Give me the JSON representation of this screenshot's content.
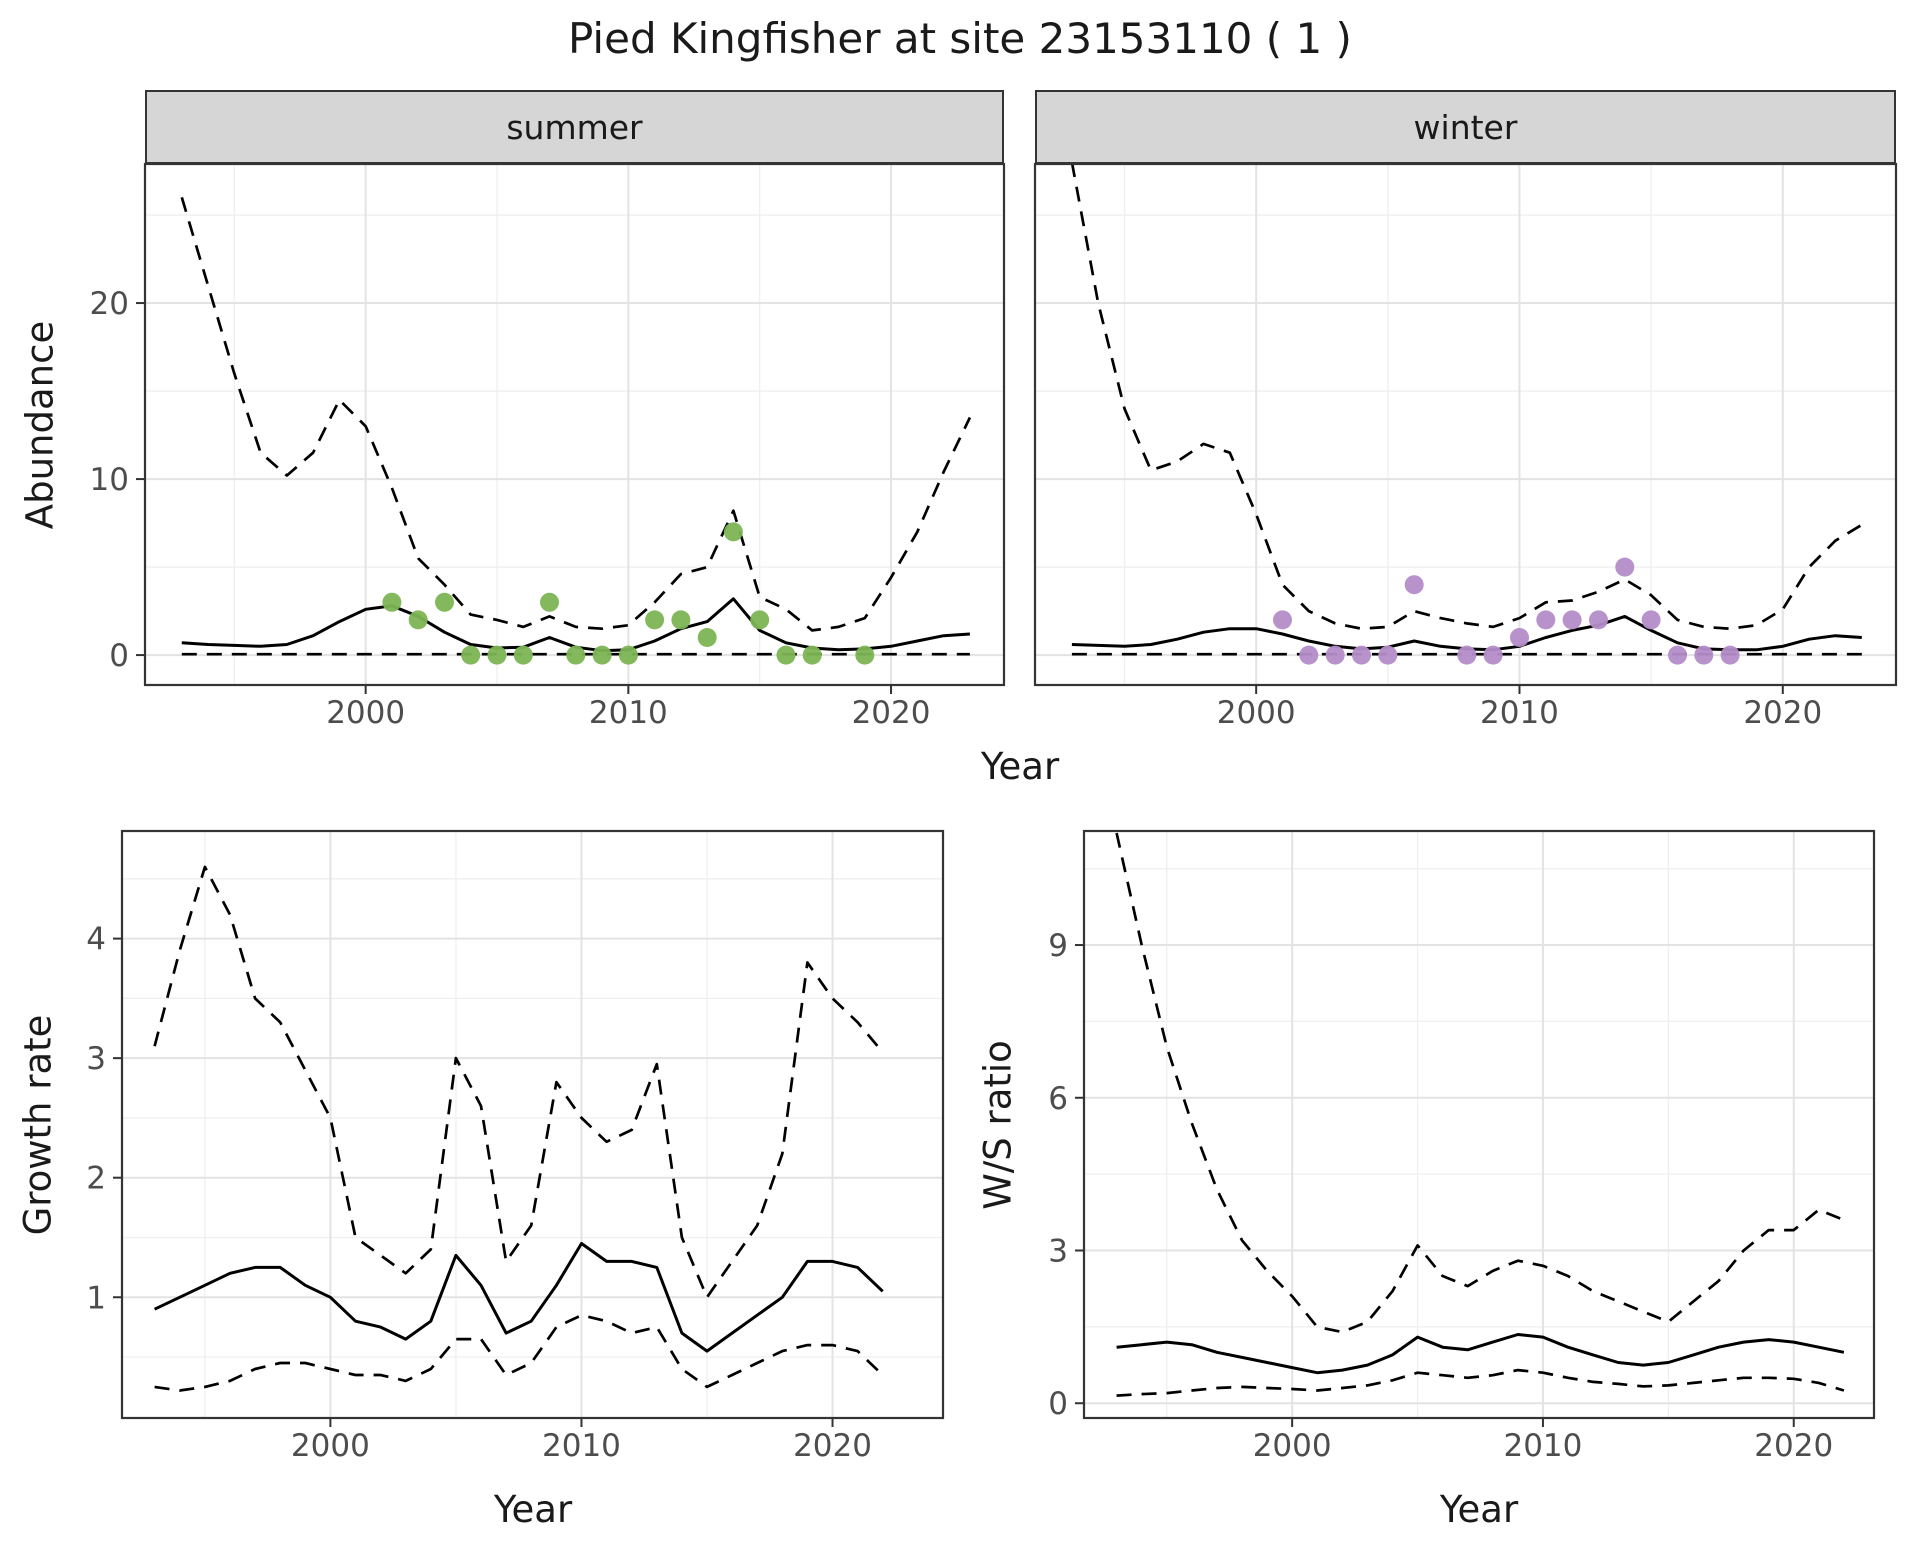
{
  "title": "Pied Kingfisher at site 23153110 ( 1 )",
  "colors": {
    "summer_points": "#7cb454",
    "winter_points": "#b48cc8",
    "line": "#000000",
    "strip_bg": "#d6d6d6",
    "panel_bg": "#ffffff",
    "grid_major": "#e3e3e3",
    "grid_minor": "#efefef",
    "tick_mark": "#333333",
    "panel_border": "#343434",
    "tick_text": "#4d4d4d"
  },
  "chart_data": [
    {
      "id": "abundance",
      "type": "line",
      "xlabel": "Year",
      "ylabel": "Abundance",
      "xlim": [
        1991.6,
        2024.3
      ],
      "ylim": [
        -1.7,
        27.9
      ],
      "xticks": [
        2000,
        2010,
        2020
      ],
      "yticks": [
        0,
        10,
        20
      ],
      "x": [
        1993,
        1994,
        1995,
        1996,
        1997,
        1998,
        1999,
        2000,
        2001,
        2002,
        2003,
        2004,
        2005,
        2006,
        2007,
        2008,
        2009,
        2010,
        2011,
        2012,
        2013,
        2014,
        2015,
        2016,
        2017,
        2018,
        2019,
        2020,
        2021,
        2022,
        2023
      ],
      "facets": [
        {
          "label": "summer",
          "series": [
            {
              "name": "upper_95ci",
              "style": "dashed",
              "values": [
                26,
                21,
                16,
                11.5,
                10.2,
                11.5,
                14.5,
                13,
                9.5,
                5.5,
                4,
                2.3,
                2,
                1.6,
                2.2,
                1.6,
                1.5,
                1.7,
                3,
                4.6,
                5,
                8.2,
                3.3,
                2.6,
                1.4,
                1.6,
                2.1,
                4.4,
                7,
                10.4,
                13.5
              ]
            },
            {
              "name": "mean_abundance",
              "style": "solid",
              "values": [
                0.7,
                0.6,
                0.55,
                0.5,
                0.6,
                1.1,
                1.9,
                2.6,
                2.8,
                2.2,
                1.3,
                0.6,
                0.4,
                0.45,
                1.0,
                0.45,
                0.25,
                0.3,
                0.8,
                1.5,
                1.9,
                3.2,
                1.4,
                0.7,
                0.4,
                0.3,
                0.35,
                0.5,
                0.8,
                1.1,
                1.2
              ]
            },
            {
              "name": "lower_95ci",
              "style": "dashed",
              "values": [
                0.05,
                0.05,
                0.05,
                0.05,
                0.05,
                0.05,
                0.05,
                0.05,
                0.05,
                0.05,
                0.05,
                0.05,
                0.05,
                0.05,
                0.05,
                0.05,
                0.05,
                0.05,
                0.05,
                0.05,
                0.05,
                0.05,
                0.05,
                0.05,
                0.05,
                0.05,
                0.05,
                0.05,
                0.05,
                0.05,
                0.05
              ]
            }
          ],
          "points": {
            "name": "observed_counts",
            "color_key": "summer_points",
            "x": [
              2001,
              2002,
              2003,
              2004,
              2005,
              2006,
              2007,
              2008,
              2009,
              2010,
              2011,
              2012,
              2013,
              2014,
              2015,
              2016,
              2017,
              2019
            ],
            "y": [
              3,
              2,
              3,
              0,
              0,
              0,
              3,
              0,
              0,
              0,
              2,
              2,
              1,
              7,
              2,
              0,
              0,
              0
            ]
          }
        },
        {
          "label": "winter",
          "series": [
            {
              "name": "upper_95ci",
              "style": "dashed",
              "values": [
                28,
                20,
                14,
                10.5,
                11,
                12,
                11.5,
                8,
                4,
                2.5,
                1.8,
                1.5,
                1.6,
                2.5,
                2.1,
                1.8,
                1.6,
                2.1,
                3,
                3.1,
                3.6,
                4.3,
                3.4,
                2,
                1.6,
                1.5,
                1.7,
                2.6,
                5,
                6.5,
                7.4
              ]
            },
            {
              "name": "mean_abundance",
              "style": "solid",
              "values": [
                0.6,
                0.55,
                0.5,
                0.6,
                0.9,
                1.3,
                1.5,
                1.5,
                1.2,
                0.8,
                0.5,
                0.35,
                0.45,
                0.8,
                0.5,
                0.35,
                0.3,
                0.5,
                1.0,
                1.4,
                1.7,
                2.2,
                1.4,
                0.7,
                0.35,
                0.3,
                0.3,
                0.5,
                0.9,
                1.1,
                1.0
              ]
            },
            {
              "name": "lower_95ci",
              "style": "dashed",
              "values": [
                0.05,
                0.05,
                0.05,
                0.05,
                0.05,
                0.05,
                0.05,
                0.05,
                0.05,
                0.05,
                0.05,
                0.05,
                0.05,
                0.05,
                0.05,
                0.05,
                0.05,
                0.05,
                0.05,
                0.05,
                0.05,
                0.05,
                0.05,
                0.05,
                0.05,
                0.05,
                0.05,
                0.05,
                0.05,
                0.05,
                0.05
              ]
            }
          ],
          "points": {
            "name": "observed_counts",
            "color_key": "winter_points",
            "x": [
              2001,
              2002,
              2003,
              2004,
              2005,
              2006,
              2008,
              2009,
              2010,
              2011,
              2012,
              2013,
              2014,
              2015,
              2016,
              2017,
              2018
            ],
            "y": [
              2,
              0,
              0,
              0,
              0,
              4,
              0,
              0,
              1,
              2,
              2,
              2,
              5,
              2,
              0,
              0,
              0
            ]
          }
        }
      ]
    },
    {
      "id": "growth_rate",
      "type": "line",
      "xlabel": "Year",
      "ylabel": "Growth rate",
      "xlim": [
        1991.7,
        2024.4
      ],
      "ylim": [
        -0.01,
        4.9
      ],
      "xticks": [
        2000,
        2010,
        2020
      ],
      "yticks": [
        1,
        2,
        3,
        4
      ],
      "x": [
        1993,
        1994,
        1995,
        1996,
        1997,
        1998,
        1999,
        2000,
        2001,
        2002,
        2003,
        2004,
        2005,
        2006,
        2007,
        2008,
        2009,
        2010,
        2011,
        2012,
        2013,
        2014,
        2015,
        2016,
        2017,
        2018,
        2019,
        2020,
        2021,
        2022
      ],
      "series": [
        {
          "name": "upper_95ci",
          "style": "dashed",
          "values": [
            3.1,
            3.9,
            4.6,
            4.2,
            3.5,
            3.3,
            2.9,
            2.5,
            1.5,
            1.35,
            1.2,
            1.4,
            3.0,
            2.6,
            1.3,
            1.6,
            2.8,
            2.5,
            2.3,
            2.4,
            2.95,
            1.5,
            1.0,
            1.3,
            1.6,
            2.2,
            3.8,
            3.5,
            3.3,
            3.05
          ]
        },
        {
          "name": "mean_growth_rate",
          "style": "solid",
          "values": [
            0.9,
            1.0,
            1.1,
            1.2,
            1.25,
            1.25,
            1.1,
            1.0,
            0.8,
            0.75,
            0.65,
            0.8,
            1.35,
            1.1,
            0.7,
            0.8,
            1.1,
            1.45,
            1.3,
            1.3,
            1.25,
            0.7,
            0.55,
            0.7,
            0.85,
            1.0,
            1.3,
            1.3,
            1.25,
            1.05
          ]
        },
        {
          "name": "lower_95ci",
          "style": "dashed",
          "values": [
            0.25,
            0.22,
            0.25,
            0.3,
            0.4,
            0.45,
            0.45,
            0.4,
            0.35,
            0.35,
            0.3,
            0.4,
            0.65,
            0.65,
            0.35,
            0.45,
            0.75,
            0.85,
            0.8,
            0.7,
            0.75,
            0.4,
            0.25,
            0.35,
            0.45,
            0.55,
            0.6,
            0.6,
            0.55,
            0.35
          ]
        }
      ]
    },
    {
      "id": "ws_ratio",
      "type": "line",
      "xlabel": "Year",
      "ylabel": "W/S ratio",
      "xlim": [
        1991.7,
        2023.2
      ],
      "ylim": [
        -0.29,
        11.24
      ],
      "xticks": [
        2000,
        2010,
        2020
      ],
      "yticks": [
        0,
        3,
        6,
        9
      ],
      "x": [
        1993,
        1994,
        1995,
        1996,
        1997,
        1998,
        1999,
        2000,
        2001,
        2002,
        2003,
        2004,
        2005,
        2006,
        2007,
        2008,
        2009,
        2010,
        2011,
        2012,
        2013,
        2014,
        2015,
        2016,
        2017,
        2018,
        2019,
        2020,
        2021,
        2022
      ],
      "series": [
        {
          "name": "upper_95ci",
          "style": "dashed",
          "values": [
            11.2,
            9.0,
            7.0,
            5.5,
            4.2,
            3.2,
            2.6,
            2.1,
            1.5,
            1.4,
            1.6,
            2.2,
            3.1,
            2.5,
            2.3,
            2.6,
            2.8,
            2.7,
            2.5,
            2.2,
            2.0,
            1.8,
            1.6,
            2.0,
            2.4,
            3.0,
            3.4,
            3.4,
            3.8,
            3.6
          ]
        },
        {
          "name": "mean_ws_ratio",
          "style": "solid",
          "values": [
            1.1,
            1.15,
            1.2,
            1.15,
            1.0,
            0.9,
            0.8,
            0.7,
            0.6,
            0.65,
            0.75,
            0.95,
            1.3,
            1.1,
            1.05,
            1.2,
            1.35,
            1.3,
            1.1,
            0.95,
            0.8,
            0.75,
            0.8,
            0.95,
            1.1,
            1.2,
            1.25,
            1.2,
            1.1,
            1.0
          ]
        },
        {
          "name": "lower_95ci",
          "style": "dashed",
          "values": [
            0.15,
            0.18,
            0.2,
            0.25,
            0.3,
            0.32,
            0.3,
            0.28,
            0.25,
            0.3,
            0.35,
            0.45,
            0.6,
            0.55,
            0.5,
            0.55,
            0.65,
            0.6,
            0.5,
            0.42,
            0.38,
            0.33,
            0.35,
            0.4,
            0.45,
            0.5,
            0.5,
            0.48,
            0.4,
            0.25
          ]
        }
      ]
    }
  ]
}
